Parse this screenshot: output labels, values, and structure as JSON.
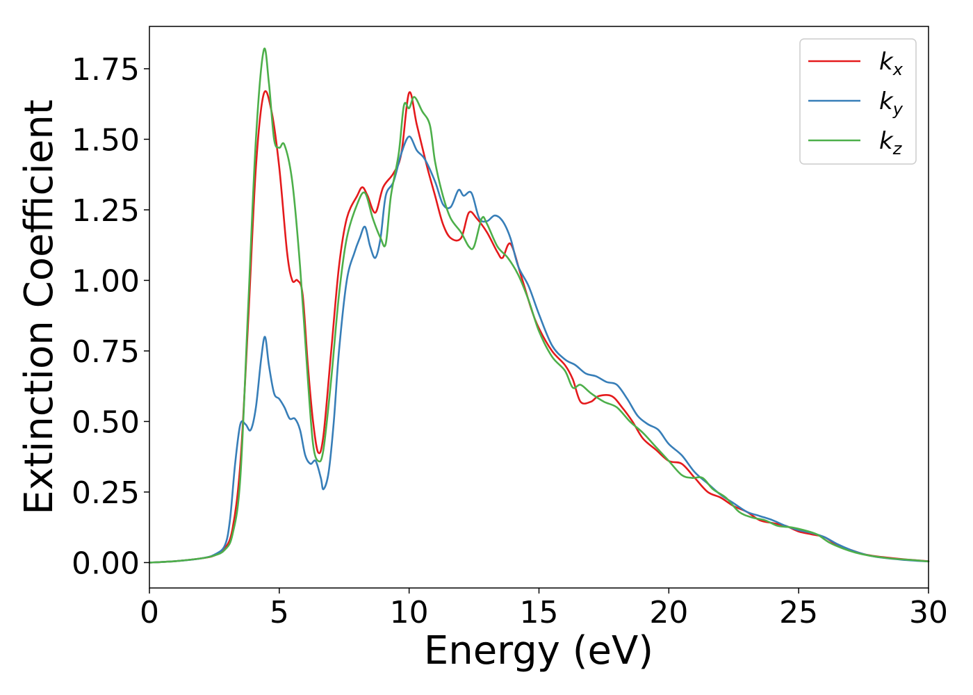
{
  "chart_data": {
    "type": "line",
    "title": "",
    "xlabel": "Energy (eV)",
    "ylabel": "Extinction Coefficient",
    "xlim": [
      0,
      30
    ],
    "ylim": [
      -0.09,
      1.9
    ],
    "xticks": [
      0,
      5,
      10,
      15,
      20,
      25,
      30
    ],
    "xtick_labels": [
      "0",
      "5",
      "10",
      "15",
      "20",
      "25",
      "30"
    ],
    "yticks": [
      0.0,
      0.25,
      0.5,
      0.75,
      1.0,
      1.25,
      1.5,
      1.75
    ],
    "ytick_labels": [
      "0.00",
      "0.25",
      "0.50",
      "0.75",
      "1.00",
      "1.25",
      "1.50",
      "1.75"
    ],
    "grid": false,
    "legend_position": "top-right",
    "series": [
      {
        "name": "k",
        "subscript": "x",
        "color": "#e41a1c",
        "points": [
          [
            0,
            0
          ],
          [
            1,
            0.005
          ],
          [
            2,
            0.015
          ],
          [
            2.5,
            0.025
          ],
          [
            2.9,
            0.05
          ],
          [
            3.2,
            0.12
          ],
          [
            3.5,
            0.35
          ],
          [
            3.8,
            0.85
          ],
          [
            4.1,
            1.4
          ],
          [
            4.4,
            1.66
          ],
          [
            4.7,
            1.6
          ],
          [
            5.0,
            1.4
          ],
          [
            5.3,
            1.1
          ],
          [
            5.5,
            1.0
          ],
          [
            5.7,
            1.0
          ],
          [
            5.9,
            0.95
          ],
          [
            6.1,
            0.7
          ],
          [
            6.3,
            0.5
          ],
          [
            6.5,
            0.39
          ],
          [
            6.7,
            0.45
          ],
          [
            7.0,
            0.75
          ],
          [
            7.3,
            1.05
          ],
          [
            7.6,
            1.22
          ],
          [
            8.0,
            1.3
          ],
          [
            8.2,
            1.33
          ],
          [
            8.4,
            1.3
          ],
          [
            8.7,
            1.24
          ],
          [
            9.0,
            1.33
          ],
          [
            9.4,
            1.38
          ],
          [
            9.7,
            1.45
          ],
          [
            10.0,
            1.665
          ],
          [
            10.3,
            1.55
          ],
          [
            10.7,
            1.4
          ],
          [
            11.0,
            1.3
          ],
          [
            11.3,
            1.2
          ],
          [
            11.6,
            1.15
          ],
          [
            12.0,
            1.15
          ],
          [
            12.3,
            1.24
          ],
          [
            12.6,
            1.22
          ],
          [
            13.0,
            1.17
          ],
          [
            13.4,
            1.1
          ],
          [
            13.6,
            1.08
          ],
          [
            13.9,
            1.13
          ],
          [
            14.3,
            1.02
          ],
          [
            14.7,
            0.9
          ],
          [
            15.0,
            0.83
          ],
          [
            15.5,
            0.75
          ],
          [
            16.0,
            0.7
          ],
          [
            16.3,
            0.65
          ],
          [
            16.6,
            0.57
          ],
          [
            17.0,
            0.57
          ],
          [
            17.3,
            0.59
          ],
          [
            17.8,
            0.59
          ],
          [
            18.2,
            0.55
          ],
          [
            18.6,
            0.5
          ],
          [
            19.0,
            0.44
          ],
          [
            19.5,
            0.4
          ],
          [
            20.0,
            0.36
          ],
          [
            20.5,
            0.35
          ],
          [
            21.0,
            0.3
          ],
          [
            21.5,
            0.25
          ],
          [
            22.0,
            0.23
          ],
          [
            22.5,
            0.2
          ],
          [
            23.0,
            0.18
          ],
          [
            23.5,
            0.15
          ],
          [
            24.0,
            0.14
          ],
          [
            24.5,
            0.13
          ],
          [
            25.0,
            0.11
          ],
          [
            25.5,
            0.1
          ],
          [
            26.0,
            0.09
          ],
          [
            26.5,
            0.06
          ],
          [
            27.0,
            0.045
          ],
          [
            27.5,
            0.03
          ],
          [
            28,
            0.022
          ],
          [
            29,
            0.012
          ],
          [
            30,
            0.005
          ]
        ]
      },
      {
        "name": "k",
        "subscript": "y",
        "color": "#377eb8",
        "points": [
          [
            0,
            0
          ],
          [
            1,
            0.005
          ],
          [
            2,
            0.015
          ],
          [
            2.5,
            0.028
          ],
          [
            2.9,
            0.06
          ],
          [
            3.1,
            0.15
          ],
          [
            3.3,
            0.35
          ],
          [
            3.5,
            0.49
          ],
          [
            3.7,
            0.49
          ],
          [
            3.9,
            0.47
          ],
          [
            4.1,
            0.55
          ],
          [
            4.3,
            0.72
          ],
          [
            4.45,
            0.8
          ],
          [
            4.6,
            0.7
          ],
          [
            4.8,
            0.6
          ],
          [
            5.0,
            0.58
          ],
          [
            5.2,
            0.55
          ],
          [
            5.4,
            0.51
          ],
          [
            5.6,
            0.51
          ],
          [
            5.8,
            0.47
          ],
          [
            6.0,
            0.38
          ],
          [
            6.2,
            0.35
          ],
          [
            6.4,
            0.36
          ],
          [
            6.6,
            0.3
          ],
          [
            6.7,
            0.26
          ],
          [
            6.9,
            0.32
          ],
          [
            7.1,
            0.5
          ],
          [
            7.3,
            0.75
          ],
          [
            7.6,
            1.0
          ],
          [
            7.9,
            1.1
          ],
          [
            8.1,
            1.15
          ],
          [
            8.3,
            1.19
          ],
          [
            8.5,
            1.12
          ],
          [
            8.7,
            1.08
          ],
          [
            8.9,
            1.15
          ],
          [
            9.1,
            1.3
          ],
          [
            9.4,
            1.35
          ],
          [
            9.7,
            1.45
          ],
          [
            10.0,
            1.51
          ],
          [
            10.3,
            1.46
          ],
          [
            10.6,
            1.43
          ],
          [
            11.0,
            1.35
          ],
          [
            11.3,
            1.27
          ],
          [
            11.6,
            1.26
          ],
          [
            11.9,
            1.32
          ],
          [
            12.1,
            1.3
          ],
          [
            12.4,
            1.31
          ],
          [
            12.7,
            1.22
          ],
          [
            13.0,
            1.21
          ],
          [
            13.3,
            1.23
          ],
          [
            13.6,
            1.21
          ],
          [
            13.9,
            1.15
          ],
          [
            14.2,
            1.05
          ],
          [
            14.6,
            0.98
          ],
          [
            15.0,
            0.88
          ],
          [
            15.5,
            0.77
          ],
          [
            16.0,
            0.72
          ],
          [
            16.4,
            0.7
          ],
          [
            16.8,
            0.67
          ],
          [
            17.2,
            0.66
          ],
          [
            17.6,
            0.64
          ],
          [
            18.0,
            0.63
          ],
          [
            18.4,
            0.58
          ],
          [
            18.8,
            0.52
          ],
          [
            19.2,
            0.49
          ],
          [
            19.6,
            0.47
          ],
          [
            20.0,
            0.42
          ],
          [
            20.5,
            0.38
          ],
          [
            21.0,
            0.32
          ],
          [
            21.5,
            0.28
          ],
          [
            22.0,
            0.24
          ],
          [
            22.5,
            0.21
          ],
          [
            23.0,
            0.18
          ],
          [
            23.5,
            0.165
          ],
          [
            24.0,
            0.15
          ],
          [
            24.5,
            0.13
          ],
          [
            25.0,
            0.115
          ],
          [
            25.5,
            0.105
          ],
          [
            26.0,
            0.09
          ],
          [
            26.5,
            0.065
          ],
          [
            27.0,
            0.045
          ],
          [
            27.5,
            0.03
          ],
          [
            28,
            0.02
          ],
          [
            29,
            0.01
          ],
          [
            30,
            0.004
          ]
        ]
      },
      {
        "name": "k",
        "subscript": "z",
        "color": "#4daf4a",
        "points": [
          [
            0,
            0
          ],
          [
            1,
            0.005
          ],
          [
            2,
            0.015
          ],
          [
            2.5,
            0.025
          ],
          [
            2.9,
            0.045
          ],
          [
            3.2,
            0.1
          ],
          [
            3.5,
            0.3
          ],
          [
            3.8,
            0.9
          ],
          [
            4.1,
            1.5
          ],
          [
            4.4,
            1.815
          ],
          [
            4.6,
            1.7
          ],
          [
            4.8,
            1.5
          ],
          [
            5.0,
            1.47
          ],
          [
            5.2,
            1.48
          ],
          [
            5.5,
            1.35
          ],
          [
            5.8,
            1.05
          ],
          [
            6.1,
            0.65
          ],
          [
            6.3,
            0.42
          ],
          [
            6.5,
            0.36
          ],
          [
            6.7,
            0.4
          ],
          [
            7.0,
            0.65
          ],
          [
            7.3,
            0.95
          ],
          [
            7.6,
            1.15
          ],
          [
            8.0,
            1.27
          ],
          [
            8.3,
            1.31
          ],
          [
            8.6,
            1.22
          ],
          [
            8.9,
            1.15
          ],
          [
            9.1,
            1.13
          ],
          [
            9.3,
            1.3
          ],
          [
            9.6,
            1.45
          ],
          [
            9.8,
            1.62
          ],
          [
            10.0,
            1.61
          ],
          [
            10.2,
            1.65
          ],
          [
            10.5,
            1.6
          ],
          [
            10.8,
            1.55
          ],
          [
            11.0,
            1.42
          ],
          [
            11.3,
            1.3
          ],
          [
            11.6,
            1.22
          ],
          [
            12.0,
            1.17
          ],
          [
            12.3,
            1.12
          ],
          [
            12.5,
            1.12
          ],
          [
            12.8,
            1.22
          ],
          [
            13.0,
            1.2
          ],
          [
            13.4,
            1.12
          ],
          [
            13.8,
            1.08
          ],
          [
            14.2,
            1.02
          ],
          [
            14.6,
            0.93
          ],
          [
            15.0,
            0.82
          ],
          [
            15.5,
            0.73
          ],
          [
            16.0,
            0.68
          ],
          [
            16.3,
            0.62
          ],
          [
            16.6,
            0.63
          ],
          [
            17.0,
            0.6
          ],
          [
            17.5,
            0.57
          ],
          [
            18.0,
            0.55
          ],
          [
            18.5,
            0.5
          ],
          [
            19.0,
            0.46
          ],
          [
            19.5,
            0.41
          ],
          [
            20.0,
            0.36
          ],
          [
            20.5,
            0.31
          ],
          [
            20.9,
            0.3
          ],
          [
            21.3,
            0.3
          ],
          [
            21.7,
            0.26
          ],
          [
            22.2,
            0.23
          ],
          [
            22.7,
            0.18
          ],
          [
            23.2,
            0.16
          ],
          [
            23.7,
            0.15
          ],
          [
            24.2,
            0.13
          ],
          [
            24.7,
            0.125
          ],
          [
            25.2,
            0.115
          ],
          [
            25.7,
            0.1
          ],
          [
            26.2,
            0.07
          ],
          [
            26.7,
            0.05
          ],
          [
            27.2,
            0.035
          ],
          [
            27.7,
            0.025
          ],
          [
            28.5,
            0.015
          ],
          [
            29.5,
            0.008
          ],
          [
            30,
            0.004
          ]
        ]
      }
    ]
  }
}
